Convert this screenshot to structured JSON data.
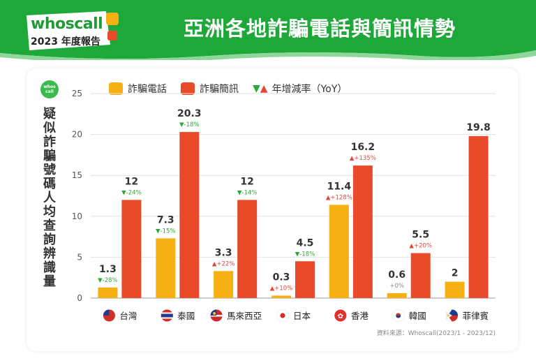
{
  "header": {
    "logo_text": "whoscall",
    "logo_sub": "2023 年度報告",
    "title": "亞洲各地詐騙電話與簡訊情勢"
  },
  "side": {
    "logo_line1": "whos",
    "logo_line2": "call",
    "ylabel": "疑似詐騙號碼人均查詢辨識量"
  },
  "legend": {
    "calls": "詐騙電話",
    "sms": "詐騙簡訊",
    "yoy": "年增減率（YoY）"
  },
  "source": "資料來源：Whoscall(2023/1 - 2023/12)",
  "colors": {
    "banner": "#1fa83a",
    "calls": "#f7b014",
    "sms": "#e84a2a",
    "down": "#2fa83a",
    "up": "#e3453a"
  },
  "chart_data": {
    "type": "bar",
    "categories": [
      "台灣",
      "泰國",
      "馬來西亞",
      "日本",
      "香港",
      "韓國",
      "菲律賓"
    ],
    "flags": [
      "taiwan-flag",
      "thailand-flag",
      "malaysia-flag",
      "japan-flag",
      "hongkong-flag",
      "korea-flag",
      "philippines-flag"
    ],
    "ylim": [
      0,
      25
    ],
    "yticks": [
      "0",
      "5",
      "10",
      "15",
      "20",
      "25"
    ],
    "series": [
      {
        "name": "詐騙電話",
        "values": [
          1.3,
          7.3,
          3.3,
          0.3,
          11.4,
          0.6,
          2
        ],
        "labels": [
          "1.3",
          "7.3",
          "3.3",
          "0.3",
          "11.4",
          "0.6",
          "2"
        ],
        "yoy": [
          "▼-28%",
          "▼-15%",
          "▲+22%",
          "▲+10%",
          "▲+128%",
          "+0%",
          ""
        ],
        "yoy_dir": [
          "down",
          "down",
          "up",
          "up",
          "up",
          "flat",
          "none"
        ]
      },
      {
        "name": "詐騙簡訊",
        "values": [
          12,
          20.3,
          12,
          4.5,
          16.2,
          5.5,
          19.8
        ],
        "labels": [
          "12",
          "20.3",
          "12",
          "4.5",
          "16.2",
          "5.5",
          "19.8"
        ],
        "yoy": [
          "▼-24%",
          "▼-18%",
          "▼-14%",
          "▼-18%",
          "▲+135%",
          "▲+20%",
          ""
        ],
        "yoy_dir": [
          "down",
          "down",
          "down",
          "down",
          "up",
          "up",
          "none"
        ]
      }
    ],
    "grid": true
  }
}
